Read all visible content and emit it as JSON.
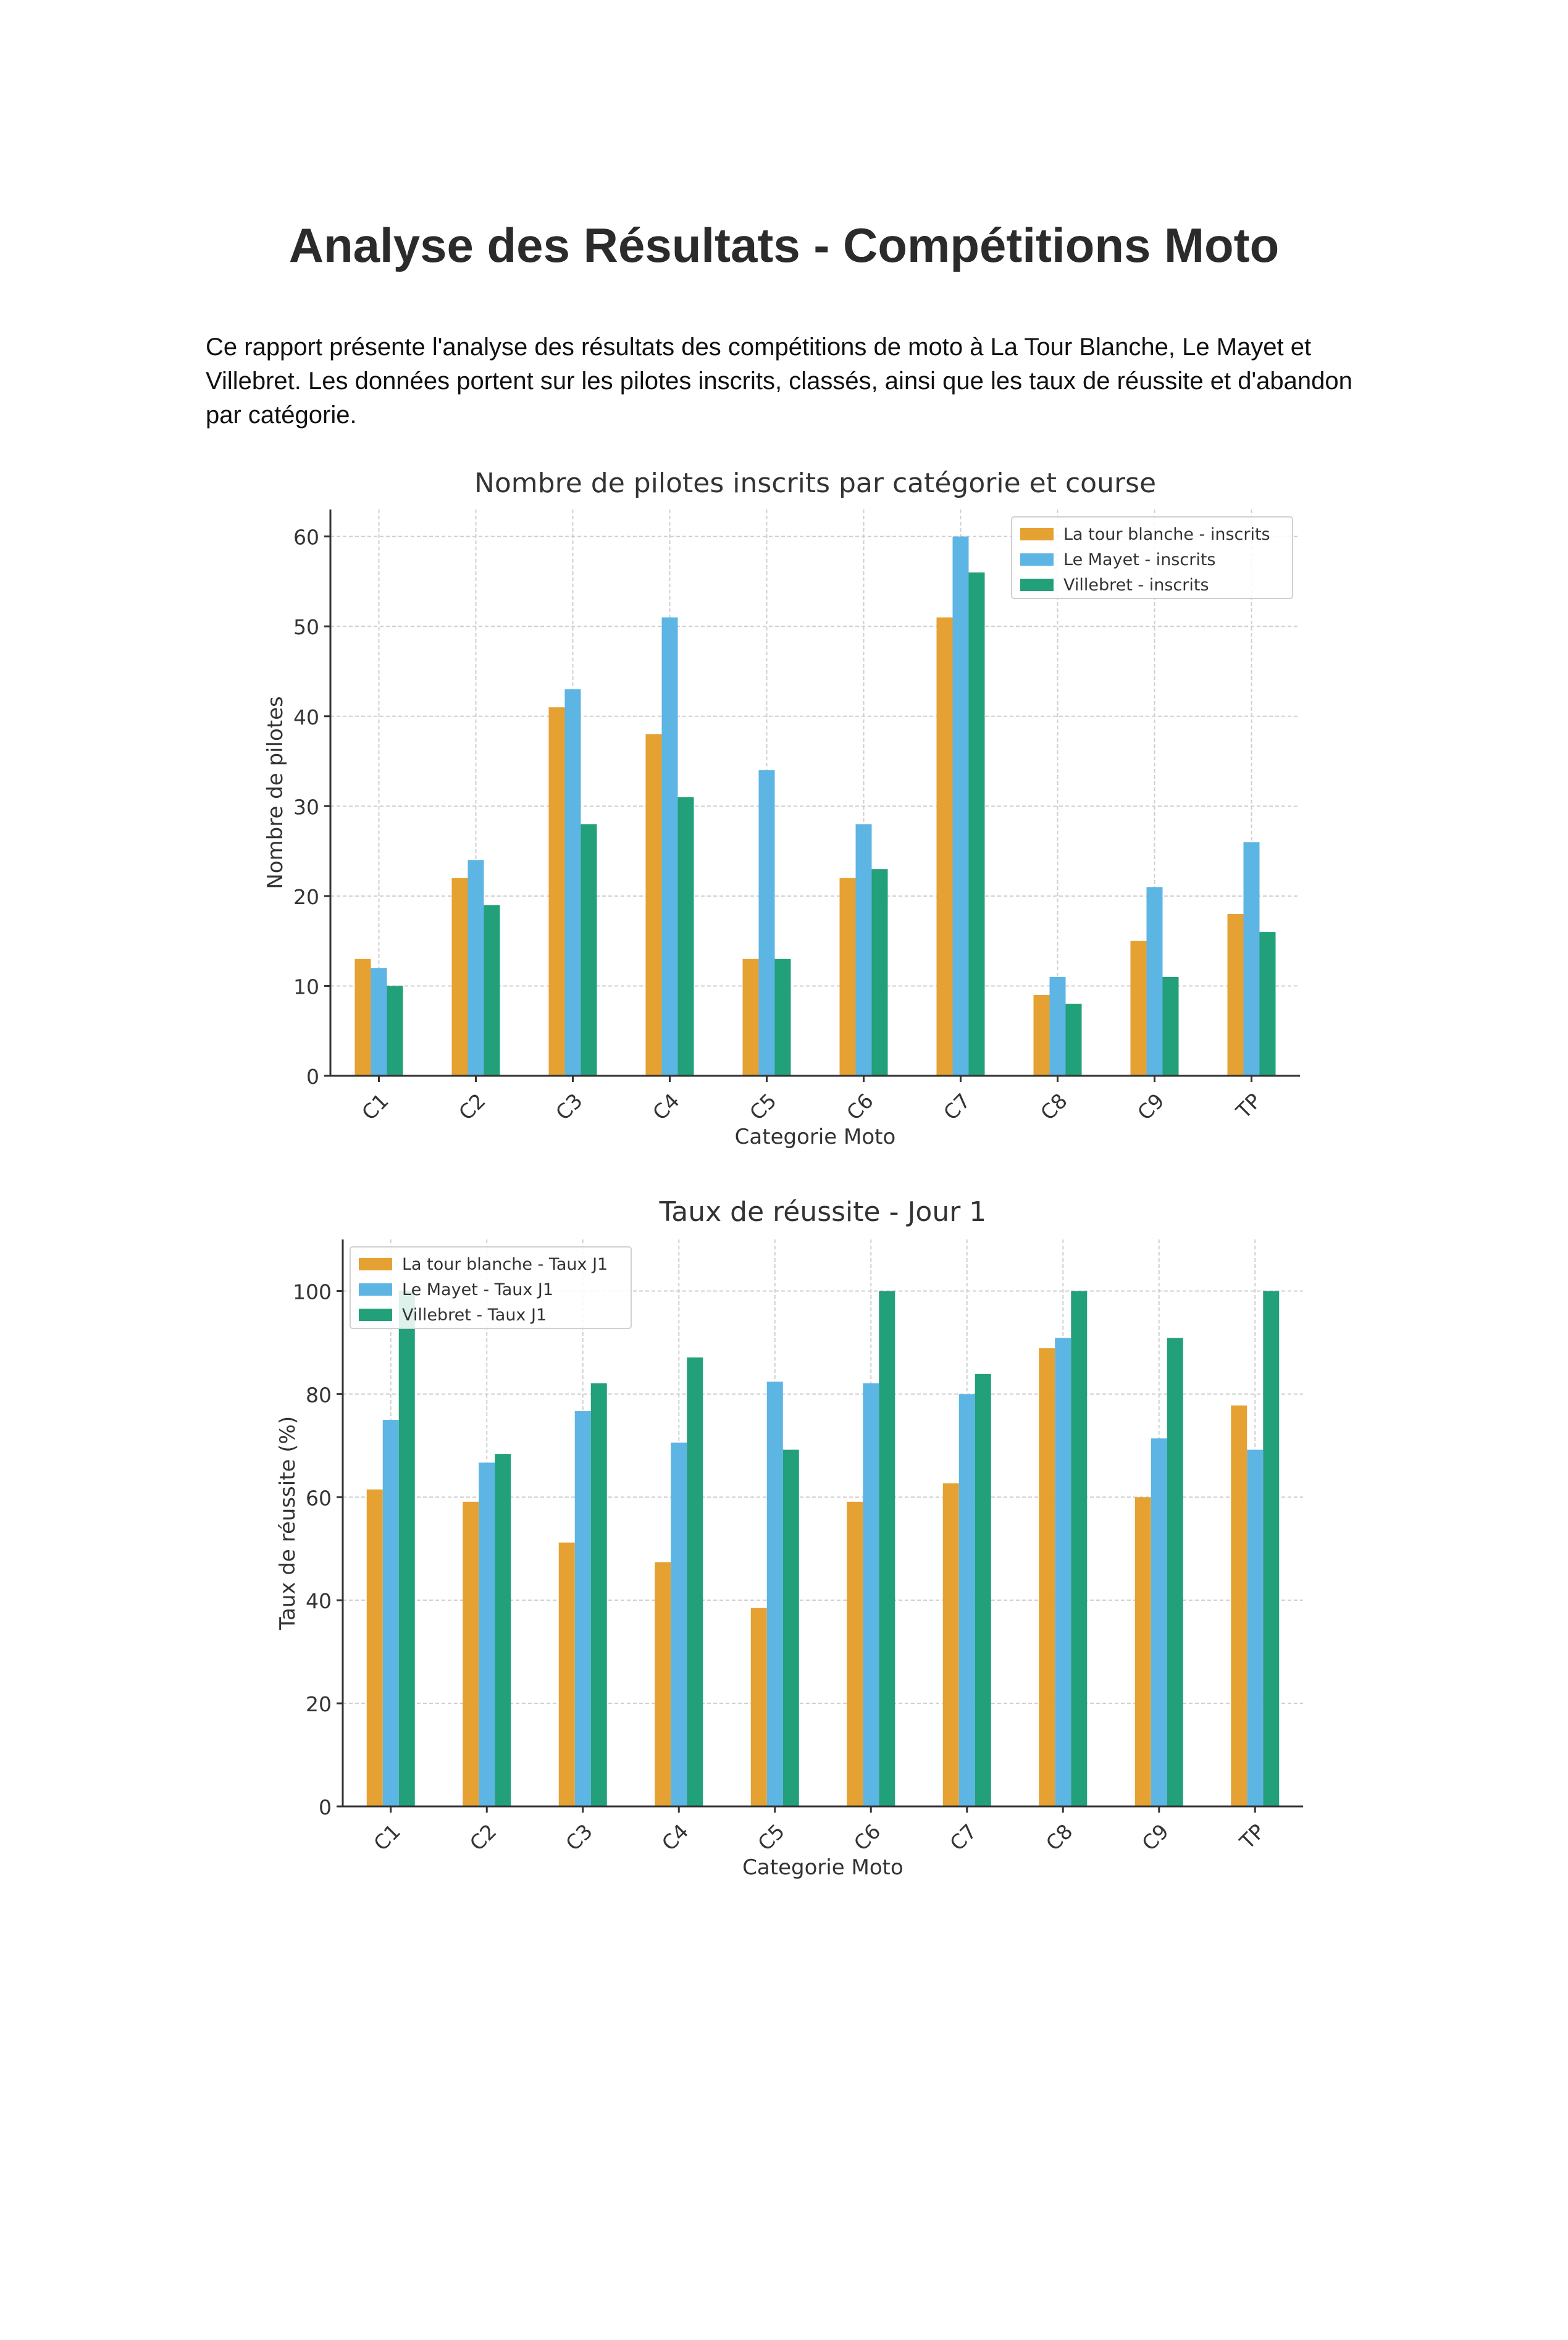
{
  "document": {
    "title": "Analyse des Résultats - Compétitions Moto",
    "intro": "Ce rapport présente l'analyse des résultats des compétitions de moto à La Tour Blanche, Le Mayet et Villebret. Les données portent sur les pilotes inscrits, classés, ainsi que les taux de réussite et d'abandon par catégorie."
  },
  "colors": {
    "tour_blanche": "#E6A133",
    "le_mayet": "#5DB5E4",
    "villebret": "#22A079"
  },
  "chart_data": [
    {
      "type": "bar",
      "title": "Nombre de pilotes inscrits par catégorie et course",
      "xlabel": "Categorie Moto",
      "ylabel": "Nombre de pilotes",
      "categories": [
        "C1",
        "C2",
        "C3",
        "C4",
        "C5",
        "C6",
        "C7",
        "C8",
        "C9",
        "TP"
      ],
      "yticks": [
        0,
        10,
        20,
        30,
        40,
        50,
        60
      ],
      "ylim": [
        0,
        63
      ],
      "grid": true,
      "legend_position": "top-right",
      "series": [
        {
          "name": "La tour blanche - inscrits",
          "color": "#E6A133",
          "values": [
            13,
            22,
            41,
            38,
            13,
            22,
            51,
            9,
            15,
            18
          ]
        },
        {
          "name": "Le Mayet - inscrits",
          "color": "#5DB5E4",
          "values": [
            12,
            24,
            43,
            51,
            34,
            28,
            60,
            11,
            21,
            26
          ]
        },
        {
          "name": "Villebret - inscrits",
          "color": "#22A079",
          "values": [
            10,
            19,
            28,
            31,
            13,
            23,
            56,
            8,
            11,
            16
          ]
        }
      ]
    },
    {
      "type": "bar",
      "title": "Taux de réussite - Jour 1",
      "xlabel": "Categorie Moto",
      "ylabel": "Taux de réussite (%)",
      "categories": [
        "C1",
        "C2",
        "C3",
        "C4",
        "C5",
        "C6",
        "C7",
        "C8",
        "C9",
        "TP"
      ],
      "yticks": [
        0,
        20,
        40,
        60,
        80,
        100
      ],
      "ylim": [
        0,
        110
      ],
      "grid": true,
      "legend_position": "top-left",
      "series": [
        {
          "name": "La tour blanche - Taux J1",
          "color": "#E6A133",
          "values": [
            61.5,
            59.1,
            51.2,
            47.4,
            38.5,
            59.1,
            62.7,
            88.9,
            60.0,
            77.8
          ]
        },
        {
          "name": "Le Mayet - Taux J1",
          "color": "#5DB5E4",
          "values": [
            75.0,
            66.7,
            76.7,
            70.6,
            82.4,
            82.1,
            80.0,
            90.9,
            71.4,
            69.2
          ]
        },
        {
          "name": "Villebret - Taux J1",
          "color": "#22A079",
          "values": [
            100.0,
            68.4,
            82.1,
            87.1,
            69.2,
            100.0,
            83.9,
            100.0,
            90.9,
            100.0
          ]
        }
      ]
    }
  ]
}
